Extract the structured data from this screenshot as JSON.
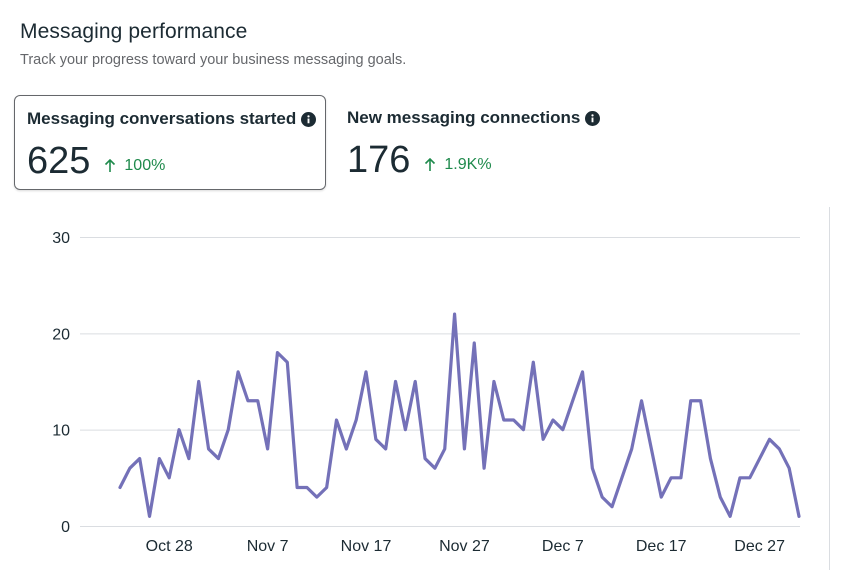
{
  "header": {
    "title": "Messaging performance",
    "subtitle": "Track your progress toward your business messaging goals."
  },
  "metrics": [
    {
      "label": "Messaging conversations started",
      "value": "625",
      "change": "100%",
      "selected": true
    },
    {
      "label": "New messaging connections",
      "value": "176",
      "change": "1.9K%",
      "selected": false
    }
  ],
  "colors": {
    "line": "#7471b8",
    "positive": "#1f8a4c",
    "grid": "#dadde1"
  },
  "icons": {
    "info": "info-icon",
    "trend": "arrow-up-icon"
  },
  "chart_data": {
    "type": "line",
    "title": "",
    "xlabel": "",
    "ylabel": "",
    "ylim": [
      0,
      30
    ],
    "yticks": [
      0,
      10,
      20,
      30
    ],
    "grid": true,
    "x_start": "Oct 23",
    "x_end": "Dec 31",
    "xtick_labels": [
      "Oct 28",
      "Nov 7",
      "Nov 17",
      "Nov 27",
      "Dec 7",
      "Dec 17",
      "Dec 27"
    ],
    "series": [
      {
        "values": [
          4,
          6,
          7,
          1,
          7,
          5,
          10,
          7,
          15,
          8,
          7,
          10,
          16,
          13,
          13,
          8,
          18,
          17,
          4,
          4,
          3,
          4,
          11,
          8,
          11,
          16,
          9,
          8,
          15,
          10,
          15,
          7,
          6,
          8,
          22,
          8,
          19,
          6,
          15,
          11,
          11,
          10,
          17,
          9,
          11,
          10,
          13,
          16,
          6,
          3,
          2,
          5,
          8,
          13,
          8,
          3,
          5,
          5,
          13,
          13,
          7,
          3,
          1,
          5,
          5,
          7,
          9,
          8,
          6,
          1
        ]
      }
    ]
  }
}
